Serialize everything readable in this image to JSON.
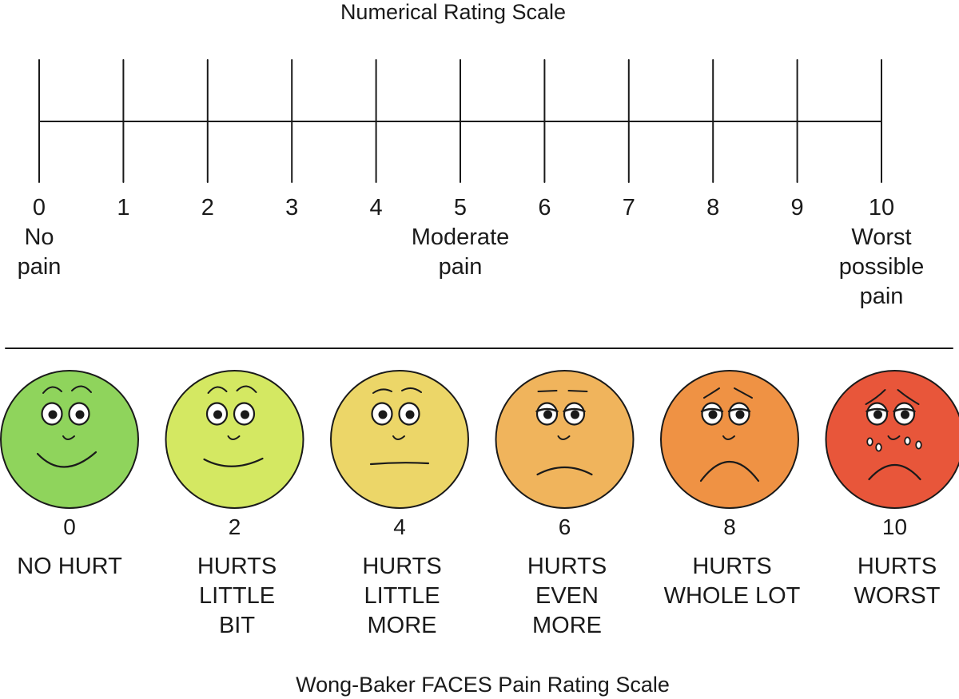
{
  "numerical_scale": {
    "title": "Numerical Rating Scale",
    "ticks": [
      "0",
      "1",
      "2",
      "3",
      "4",
      "5",
      "6",
      "7",
      "8",
      "9",
      "10"
    ],
    "anchors": [
      {
        "at": 0,
        "lines": [
          "No",
          "pain"
        ]
      },
      {
        "at": 5,
        "lines": [
          "Moderate",
          "pain"
        ]
      },
      {
        "at": 10,
        "lines": [
          "Worst",
          "possible",
          "pain"
        ]
      }
    ]
  },
  "faces_scale": {
    "title": "Wong-Baker FACES Pain Rating Scale",
    "faces": [
      {
        "score": "0",
        "lines": [
          "NO HURT"
        ],
        "color": "#8fd45c",
        "expression": "smile-big"
      },
      {
        "score": "2",
        "lines": [
          "HURTS",
          "LITTLE",
          "BIT"
        ],
        "color": "#d4e862",
        "expression": "smile"
      },
      {
        "score": "4",
        "lines": [
          "HURTS",
          "LITTLE",
          "MORE"
        ],
        "color": "#ecd668",
        "expression": "neutral"
      },
      {
        "score": "6",
        "lines": [
          "HURTS",
          "EVEN",
          "MORE"
        ],
        "color": "#f0b45c",
        "expression": "frown-slight"
      },
      {
        "score": "8",
        "lines": [
          "HURTS",
          "WHOLE LOT"
        ],
        "color": "#ef9244",
        "expression": "frown"
      },
      {
        "score": "10",
        "lines": [
          "HURTS",
          "WORST"
        ],
        "color": "#e8563a",
        "expression": "crying"
      }
    ]
  }
}
